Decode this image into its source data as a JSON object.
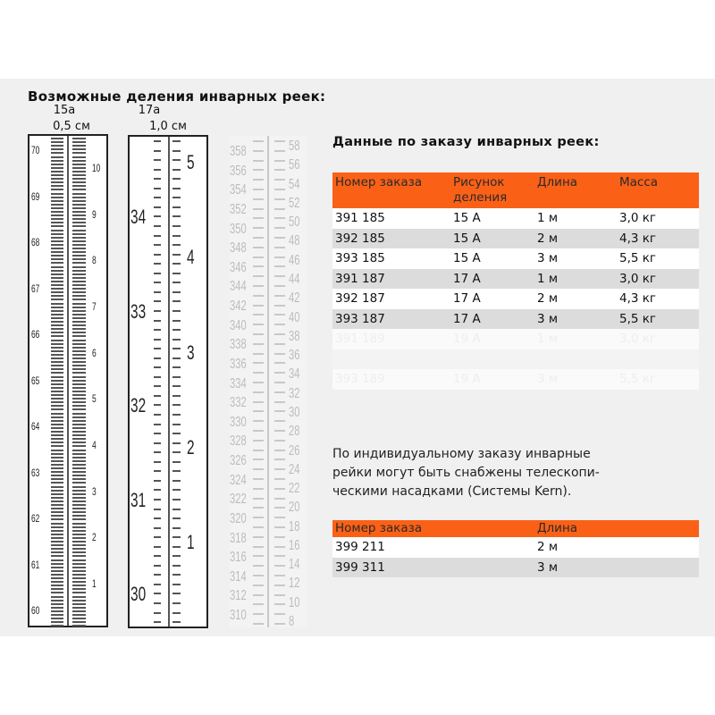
{
  "left": {
    "title": "Возможные деления инварных реек:",
    "rulers": [
      {
        "name": "15a",
        "unit": "0,5 см",
        "left_labels": [
          "70",
          "69",
          "68",
          "67",
          "66",
          "65",
          "64",
          "63",
          "62",
          "61",
          "60"
        ],
        "right_labels": [
          "10",
          "9",
          "8",
          "7",
          "6",
          "5",
          "4",
          "3",
          "2",
          "1"
        ]
      },
      {
        "name": "17a",
        "unit": "1,0 см",
        "left_labels": [
          "34",
          "33",
          "32",
          "31",
          "30"
        ],
        "right_labels": [
          "5",
          "4",
          "3",
          "2",
          "1"
        ]
      },
      {
        "left_labels": [
          "358",
          "356",
          "354",
          "352",
          "350",
          "348",
          "346",
          "344",
          "342",
          "340",
          "338",
          "336",
          "334",
          "332",
          "330",
          "328",
          "326",
          "324",
          "322",
          "320",
          "318",
          "316",
          "314",
          "312",
          "310"
        ],
        "right_labels": [
          "58",
          "56",
          "54",
          "52",
          "50",
          "48",
          "46",
          "44",
          "42",
          "40",
          "38",
          "36",
          "34",
          "32",
          "30",
          "28",
          "26",
          "24",
          "22",
          "20",
          "18",
          "16",
          "14",
          "12",
          "10",
          "8"
        ]
      }
    ]
  },
  "right": {
    "title": "Данные по заказу инварных реек:",
    "table1": {
      "headers": [
        "Номер заказа",
        "Рисунок деления",
        "Длина",
        "Масса"
      ],
      "rows": [
        [
          "391 185",
          "15 A",
          "1 м",
          "3,0 кг"
        ],
        [
          "392 185",
          "15 A",
          "2 м",
          "4,3 кг"
        ],
        [
          "393 185",
          "15 A",
          "3 м",
          "5,5 кг"
        ],
        [
          "391 187",
          "17 A",
          "1 м",
          "3,0 кг"
        ],
        [
          "392 187",
          "17 A",
          "2 м",
          "4,3 кг"
        ],
        [
          "393 187",
          "17 A",
          "3 м",
          "5,5 кг"
        ]
      ],
      "faded_rows": [
        [
          "391 189",
          "19 A",
          "1 м",
          "3,0 кг"
        ],
        [
          "",
          "",
          "",
          ""
        ],
        [
          "393 189",
          "19 A",
          "3 м",
          "5,5 кг"
        ]
      ]
    },
    "note": "По индивидуальному заказу инварные рейки могут быть снабжены телескопи-ческими насадками (Системы Kern).",
    "note_lines": [
      "По индивидуальному заказу инварные",
      "рейки могут быть снабжены телескопи-",
      "ческими насадками (Системы Kern)."
    ],
    "table2": {
      "headers": [
        "Номер заказа",
        "Длина"
      ],
      "rows": [
        [
          "399 211",
          "2 м"
        ],
        [
          "399 311",
          "3 м"
        ]
      ]
    }
  },
  "colors": {
    "header_orange": "#fa6117",
    "stripe_gray": "#dcdcdc",
    "background": "#f0f0f0"
  }
}
